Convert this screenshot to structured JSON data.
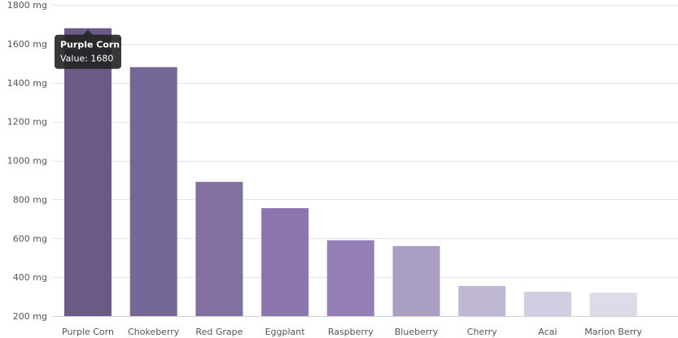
{
  "chart_data": {
    "type": "bar",
    "unit": "mg",
    "ylim": [
      200,
      1800
    ],
    "yticks": [
      200,
      400,
      600,
      800,
      1000,
      1200,
      1400,
      1600,
      1800
    ],
    "ytick_labels": [
      "200 mg",
      "400 mg",
      "600 mg",
      "800 mg",
      "1000 mg",
      "1200 mg",
      "1400 mg",
      "1600 mg",
      "1800 mg"
    ],
    "categories": [
      "Purple Corn",
      "Chokeberry",
      "Red Grape",
      "Eggplant",
      "Raspberry",
      "Blueberry",
      "Cherry",
      "Acai",
      "Marion Berry"
    ],
    "values": [
      1680,
      1480,
      890,
      755,
      590,
      560,
      355,
      325,
      320
    ],
    "colors": [
      "#6b5a86",
      "#766896",
      "#8270a1",
      "#8b77ae",
      "#9480b7",
      "#ab9ec5",
      "#bfb7d3",
      "#d3cde3",
      "#dedbe8"
    ],
    "grid": true,
    "tooltip": {
      "title": "Purple Corn",
      "value_text": "Value: 1680"
    }
  }
}
